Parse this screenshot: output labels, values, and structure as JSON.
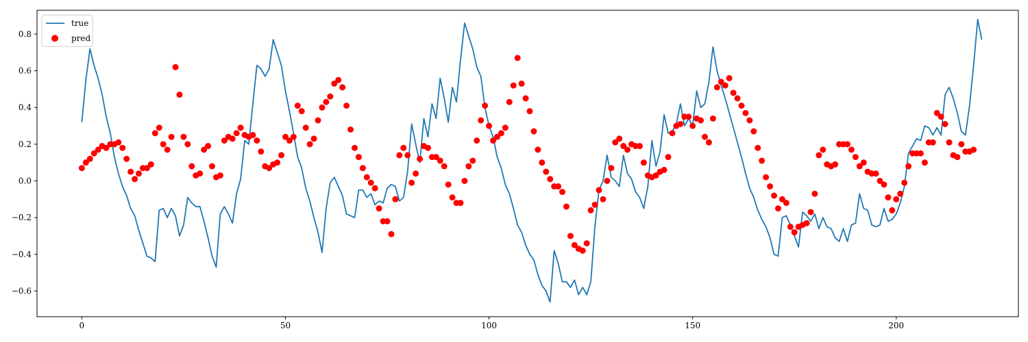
{
  "chart_data": {
    "type": "line+scatter",
    "title": "",
    "xlabel": "",
    "ylabel": "",
    "xlim": [
      -11,
      230
    ],
    "ylim": [
      -0.74,
      0.93
    ],
    "x_ticks": [
      0,
      50,
      100,
      150,
      200
    ],
    "y_ticks": [
      -0.6,
      -0.4,
      -0.2,
      0.0,
      0.2,
      0.4,
      0.6,
      0.8
    ],
    "y_tick_labels": [
      "−0.6",
      "−0.4",
      "−0.2",
      "0.0",
      "0.2",
      "0.4",
      "0.6",
      "0.8"
    ],
    "grid": false,
    "legend": {
      "position": "top-left",
      "entries": [
        "true",
        "pred"
      ]
    },
    "series": [
      {
        "name": "true",
        "kind": "line",
        "color": "#1f77b4",
        "values": [
          0.32,
          0.55,
          0.72,
          0.63,
          0.56,
          0.47,
          0.35,
          0.26,
          0.13,
          0.04,
          -0.03,
          -0.08,
          -0.15,
          -0.19,
          -0.27,
          -0.34,
          -0.41,
          -0.42,
          -0.44,
          -0.16,
          -0.15,
          -0.2,
          -0.15,
          -0.19,
          -0.3,
          -0.24,
          -0.09,
          -0.12,
          -0.14,
          -0.14,
          -0.22,
          -0.31,
          -0.41,
          -0.47,
          -0.18,
          -0.14,
          -0.18,
          -0.23,
          -0.07,
          0.01,
          0.22,
          0.2,
          0.42,
          0.63,
          0.61,
          0.57,
          0.61,
          0.77,
          0.7,
          0.63,
          0.49,
          0.38,
          0.26,
          0.13,
          0.07,
          -0.04,
          -0.11,
          -0.2,
          -0.28,
          -0.39,
          -0.15,
          -0.01,
          0.02,
          -0.03,
          -0.08,
          -0.18,
          -0.19,
          -0.2,
          -0.05,
          -0.05,
          -0.09,
          -0.07,
          -0.13,
          -0.11,
          -0.12,
          -0.04,
          -0.02,
          -0.03,
          -0.11,
          -0.09,
          0.05,
          0.31,
          0.2,
          0.1,
          0.34,
          0.24,
          0.42,
          0.34,
          0.56,
          0.45,
          0.32,
          0.51,
          0.43,
          0.66,
          0.86,
          0.79,
          0.72,
          0.62,
          0.57,
          0.4,
          0.3,
          0.24,
          0.13,
          0.07,
          -0.02,
          -0.07,
          -0.15,
          -0.24,
          -0.28,
          -0.35,
          -0.4,
          -0.43,
          -0.51,
          -0.57,
          -0.6,
          -0.66,
          -0.38,
          -0.45,
          -0.55,
          -0.55,
          -0.58,
          -0.54,
          -0.62,
          -0.58,
          -0.62,
          -0.55,
          -0.25,
          -0.05,
          0.0,
          0.14,
          0.02,
          0.0,
          -0.03,
          0.14,
          0.04,
          0.01,
          -0.06,
          -0.09,
          -0.15,
          -0.03,
          0.22,
          0.08,
          0.16,
          0.36,
          0.26,
          0.27,
          0.31,
          0.42,
          0.3,
          0.34,
          0.3,
          0.49,
          0.4,
          0.42,
          0.54,
          0.73,
          0.6,
          0.52,
          0.45,
          0.37,
          0.29,
          0.21,
          0.13,
          0.04,
          -0.04,
          -0.09,
          -0.16,
          -0.21,
          -0.25,
          -0.31,
          -0.4,
          -0.41,
          -0.2,
          -0.19,
          -0.24,
          -0.3,
          -0.36,
          -0.17,
          -0.19,
          -0.22,
          -0.18,
          -0.26,
          -0.2,
          -0.25,
          -0.26,
          -0.31,
          -0.33,
          -0.26,
          -0.33,
          -0.24,
          -0.23,
          -0.07,
          -0.15,
          -0.16,
          -0.24,
          -0.25,
          -0.24,
          -0.15,
          -0.22,
          -0.21,
          -0.18,
          -0.12,
          -0.03,
          0.15,
          0.19,
          0.23,
          0.22,
          0.3,
          0.29,
          0.25,
          0.29,
          0.25,
          0.47,
          0.51,
          0.45,
          0.37,
          0.27,
          0.25,
          0.41,
          0.63,
          0.88,
          0.77
        ]
      },
      {
        "name": "pred",
        "kind": "scatter",
        "color": "#ff0000",
        "values": [
          0.07,
          0.1,
          0.12,
          0.15,
          0.17,
          0.19,
          0.18,
          0.2,
          0.2,
          0.21,
          0.18,
          0.12,
          0.05,
          0.01,
          0.04,
          0.07,
          0.07,
          0.09,
          0.26,
          0.29,
          0.2,
          0.17,
          0.24,
          0.62,
          0.47,
          0.24,
          0.2,
          0.08,
          0.03,
          0.04,
          0.17,
          0.19,
          0.08,
          0.02,
          0.03,
          0.22,
          0.24,
          0.23,
          0.26,
          0.29,
          0.25,
          0.24,
          0.25,
          0.22,
          0.16,
          0.08,
          0.07,
          0.09,
          0.1,
          0.14,
          0.24,
          0.22,
          0.24,
          0.41,
          0.38,
          0.29,
          0.2,
          0.23,
          0.33,
          0.4,
          0.43,
          0.46,
          0.53,
          0.55,
          0.51,
          0.41,
          0.28,
          0.18,
          0.13,
          0.07,
          0.02,
          -0.01,
          -0.04,
          -0.15,
          -0.22,
          -0.22,
          -0.29,
          -0.1,
          0.14,
          0.18,
          0.14,
          -0.01,
          0.04,
          0.12,
          0.19,
          0.18,
          0.13,
          0.13,
          0.11,
          0.08,
          -0.02,
          -0.09,
          -0.12,
          -0.12,
          0.0,
          0.08,
          0.11,
          0.22,
          0.33,
          0.41,
          0.3,
          0.22,
          0.24,
          0.26,
          0.29,
          0.43,
          0.52,
          0.67,
          0.53,
          0.45,
          0.38,
          0.27,
          0.17,
          0.1,
          0.05,
          0.01,
          -0.03,
          -0.03,
          -0.06,
          -0.14,
          -0.3,
          -0.35,
          -0.37,
          -0.38,
          -0.34,
          -0.16,
          -0.13,
          -0.05,
          -0.1,
          0.0,
          0.07,
          0.21,
          0.23,
          0.19,
          0.17,
          0.2,
          0.19,
          0.19,
          0.1,
          0.03,
          0.02,
          0.03,
          0.05,
          0.06,
          0.13,
          0.26,
          0.3,
          0.31,
          0.35,
          0.35,
          0.3,
          0.34,
          0.33,
          0.24,
          0.21,
          0.34,
          0.51,
          0.54,
          0.52,
          0.56,
          0.48,
          0.45,
          0.41,
          0.37,
          0.33,
          0.27,
          0.18,
          0.11,
          0.02,
          -0.03,
          -0.08,
          -0.15,
          -0.1,
          -0.12,
          -0.25,
          -0.28,
          -0.25,
          -0.24,
          -0.23,
          -0.17,
          -0.07,
          0.14,
          0.17,
          0.09,
          0.08,
          0.09,
          0.2,
          0.2,
          0.2,
          0.17,
          0.13,
          0.08,
          0.1,
          0.05,
          0.04,
          0.04,
          0.0,
          -0.02,
          -0.09,
          -0.16,
          -0.1,
          -0.07,
          -0.01,
          0.08,
          0.15,
          0.15,
          0.15,
          0.1,
          0.21,
          0.21,
          0.37,
          0.35,
          0.31,
          0.21,
          0.14,
          0.13,
          0.2,
          0.16,
          0.16,
          0.17
        ]
      }
    ]
  }
}
